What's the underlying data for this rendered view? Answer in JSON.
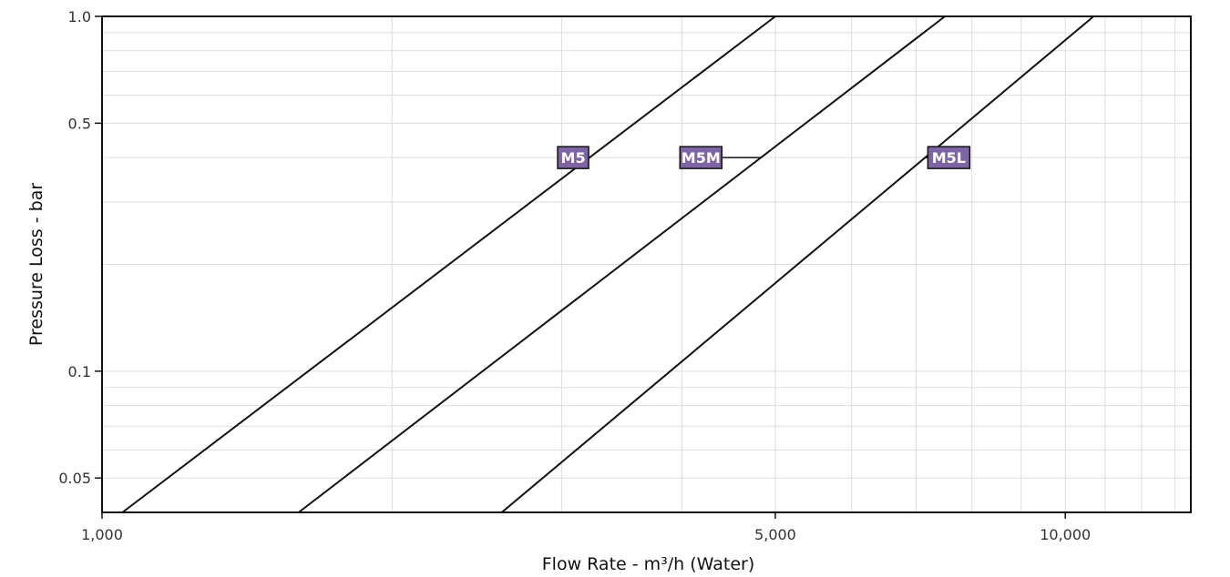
{
  "chart_data": {
    "type": "line",
    "x_scale": "log",
    "y_scale": "log",
    "xlim": [
      1000,
      13500
    ],
    "ylim": [
      0.04,
      1.0
    ],
    "grid": true,
    "xlabel": "Flow Rate - m³/h (Water)",
    "ylabel": "Pressure Loss - bar",
    "x_ticks": [
      {
        "value": 1000,
        "label": "1,000"
      },
      {
        "value": 5000,
        "label": "5,000"
      },
      {
        "value": 10000,
        "label": "10,000"
      }
    ],
    "y_ticks": [
      {
        "value": 0.05,
        "label": "0.05"
      },
      {
        "value": 0.1,
        "label": "0.1"
      },
      {
        "value": 0.5,
        "label": "0.5"
      },
      {
        "value": 1.0,
        "label": "1.0"
      }
    ],
    "series": [
      {
        "name": "M5",
        "label_at": {
          "x": 3200,
          "y": 0.4
        },
        "points": [
          [
            1050,
            0.04
          ],
          [
            5000,
            1.0
          ]
        ]
      },
      {
        "name": "M5M",
        "label_at": {
          "x": 4400,
          "y": 0.4
        },
        "points": [
          [
            1600,
            0.04
          ],
          [
            7500,
            1.0
          ]
        ]
      },
      {
        "name": "M5L",
        "label_at": {
          "x": 7200,
          "y": 0.4
        },
        "points": [
          [
            2600,
            0.04
          ],
          [
            10700,
            1.0
          ]
        ]
      }
    ]
  },
  "colors": {
    "line": "#111111",
    "label_fill": "#7e64a4",
    "label_border": "#111111",
    "grid": "#dddddd",
    "frame": "#111111"
  }
}
